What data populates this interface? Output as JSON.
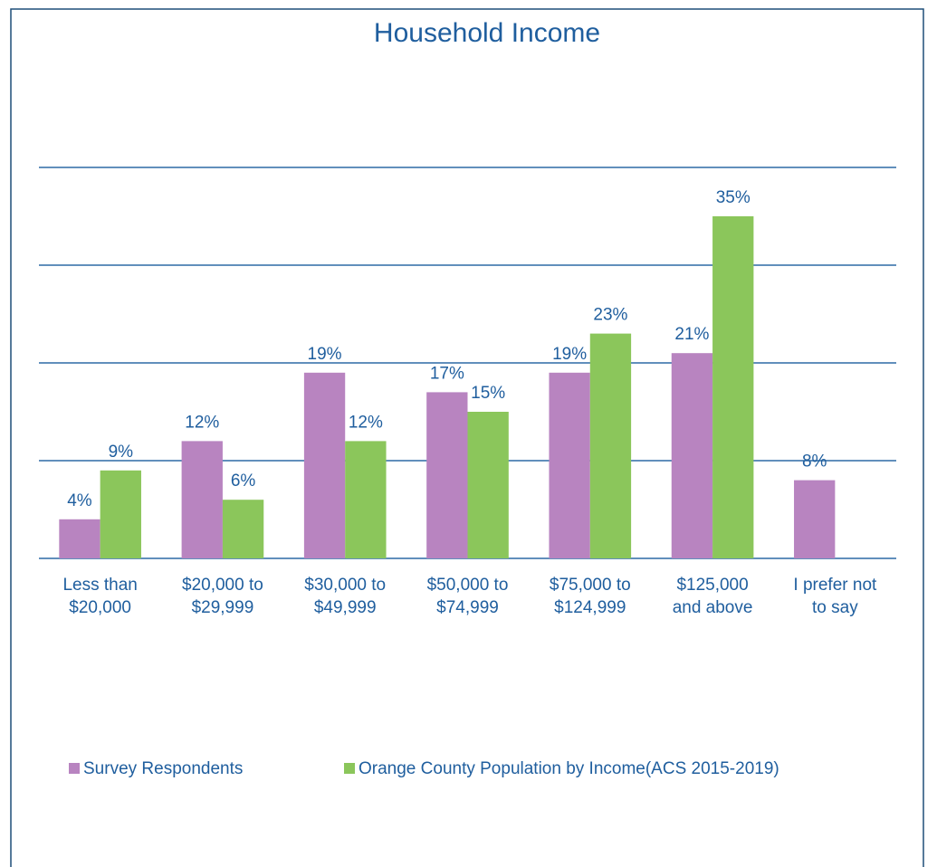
{
  "chart_data": {
    "type": "bar",
    "title": "Household Income",
    "categories": [
      [
        "Less than",
        "$20,000"
      ],
      [
        "$20,000 to",
        "$29,999"
      ],
      [
        "$30,000 to",
        "$49,999"
      ],
      [
        "$50,000 to",
        "$74,999"
      ],
      [
        "$75,000 to",
        "$124,999"
      ],
      [
        "$125,000",
        "and above"
      ],
      [
        "I prefer not",
        "to say"
      ]
    ],
    "series": [
      {
        "name": "Survey Respondents",
        "color": "#b884c0",
        "values": [
          4,
          12,
          19,
          17,
          19,
          21,
          8
        ],
        "value_labels": [
          "4%",
          "12%",
          "19%",
          "17%",
          "19%",
          "21%",
          "8%"
        ]
      },
      {
        "name": "Orange County Population by Income(ACS 2015-2019)",
        "color": "#8bc65b",
        "values": [
          9,
          6,
          12,
          15,
          23,
          35,
          null
        ],
        "value_labels": [
          "9%",
          "6%",
          "12%",
          "15%",
          "23%",
          "35%",
          null
        ]
      }
    ],
    "ylim": [
      0,
      40
    ],
    "yticks": [
      0,
      10,
      20,
      30,
      40
    ],
    "grid": true,
    "legend": "bottom"
  }
}
